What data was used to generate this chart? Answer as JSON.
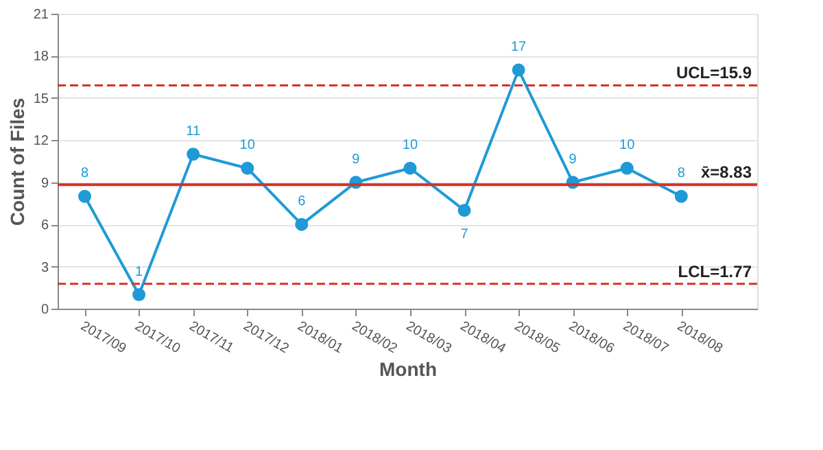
{
  "chart_data": {
    "type": "line",
    "xlabel": "Month",
    "ylabel": "Count of Files",
    "categories": [
      "2017/09",
      "2017/10",
      "2017/11",
      "2017/12",
      "2018/01",
      "2018/02",
      "2018/03",
      "2018/04",
      "2018/05",
      "2018/06",
      "2018/07",
      "2018/08"
    ],
    "series": [
      {
        "color": "#1f9ad6",
        "values": [
          8,
          1,
          11,
          10,
          6,
          9,
          10,
          7,
          17,
          9,
          10,
          8
        ]
      }
    ],
    "ylim": [
      0,
      21
    ],
    "yticks": [
      0,
      3,
      6,
      9,
      12,
      15,
      18,
      21
    ],
    "grid": "y",
    "marker": "circle",
    "line_style": "solid",
    "data_labels": true,
    "ref_lines": [
      {
        "axis": "y",
        "value": 15.9,
        "label": "UCL=15.9",
        "color": "#d93025",
        "line_style": "dashed"
      },
      {
        "axis": "y",
        "value": 8.83,
        "label": "x̄=8.83",
        "color": "#d93025",
        "line_style": "solid"
      },
      {
        "axis": "y",
        "value": 1.77,
        "label": "LCL=1.77",
        "color": "#d93025",
        "line_style": "dashed"
      }
    ]
  }
}
